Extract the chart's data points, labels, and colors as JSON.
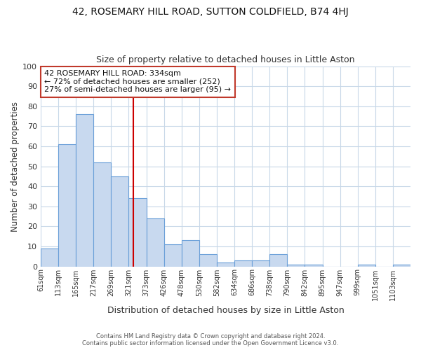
{
  "title": "42, ROSEMARY HILL ROAD, SUTTON COLDFIELD, B74 4HJ",
  "subtitle": "Size of property relative to detached houses in Little Aston",
  "xlabel": "Distribution of detached houses by size in Little Aston",
  "ylabel": "Number of detached properties",
  "bar_labels": [
    "61sqm",
    "113sqm",
    "165sqm",
    "217sqm",
    "269sqm",
    "321sqm",
    "373sqm",
    "426sqm",
    "478sqm",
    "530sqm",
    "582sqm",
    "634sqm",
    "686sqm",
    "738sqm",
    "790sqm",
    "842sqm",
    "895sqm",
    "947sqm",
    "999sqm",
    "1051sqm",
    "1103sqm"
  ],
  "bar_values": [
    9,
    61,
    76,
    52,
    45,
    34,
    24,
    11,
    13,
    6,
    2,
    3,
    3,
    6,
    1,
    1,
    0,
    0,
    1,
    0,
    1
  ],
  "bar_color": "#c8d9ef",
  "bar_edge_color": "#6a9fd8",
  "annotation_text_line1": "42 ROSEMARY HILL ROAD: 334sqm",
  "annotation_text_line2": "← 72% of detached houses are smaller (252)",
  "annotation_text_line3": "27% of semi-detached houses are larger (95) →",
  "annotation_box_edge": "#c0392b",
  "vline_color": "#cc0000",
  "ylim": [
    0,
    100
  ],
  "footer1": "Contains HM Land Registry data © Crown copyright and database right 2024.",
  "footer2": "Contains public sector information licensed under the Open Government Licence v3.0.",
  "background_color": "#ffffff",
  "grid_color": "#c8d8e8",
  "title_fontsize": 10,
  "subtitle_fontsize": 9
}
